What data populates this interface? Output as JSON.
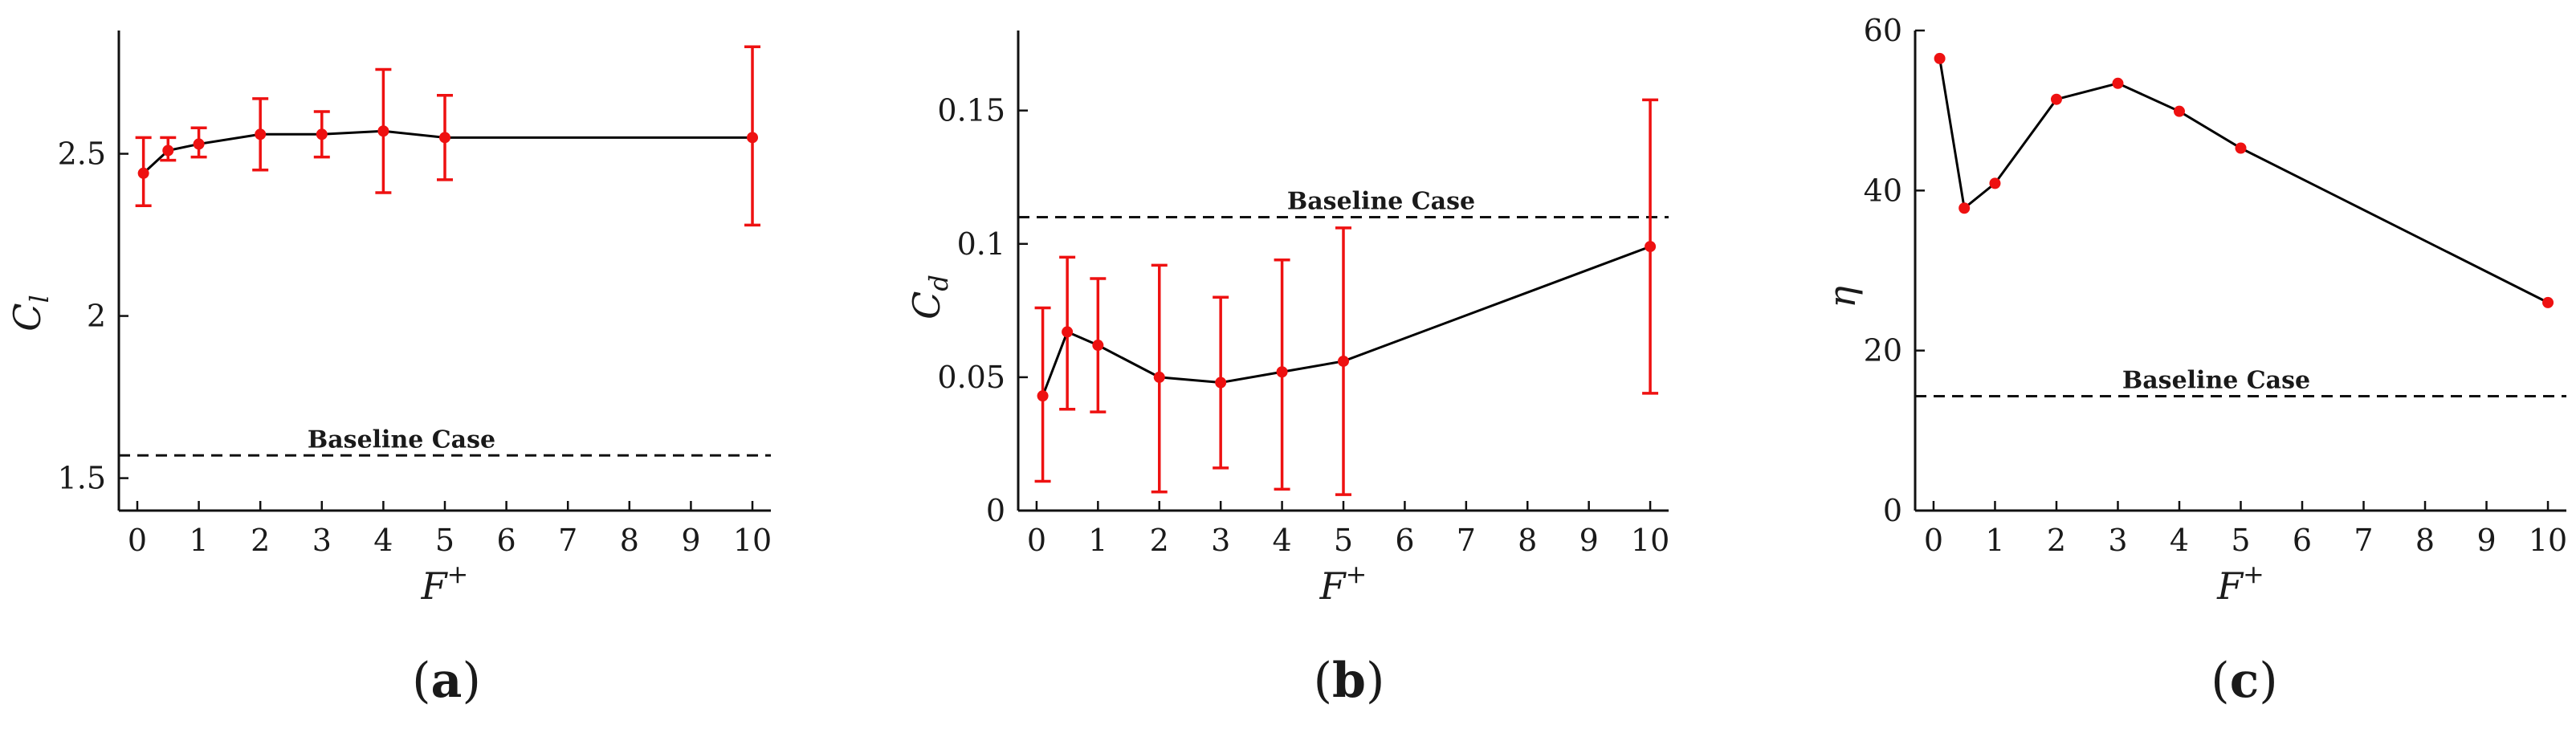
{
  "chart_data": [
    {
      "type": "line",
      "panel_label": "(a)",
      "panel_letter": "a",
      "xlabel": "F",
      "xlabel_sup": "+",
      "ylabel": "C",
      "ylabel_sub": "l",
      "xlim": [
        -0.3,
        10.3
      ],
      "ylim": [
        1.4,
        2.88
      ],
      "xticks": [
        0,
        1,
        2,
        3,
        4,
        5,
        6,
        7,
        8,
        9,
        10
      ],
      "yticks": [
        1.5,
        2,
        2.5
      ],
      "ytick_labels": [
        "1.5",
        "2",
        "2.5"
      ],
      "series": [
        {
          "x": [
            0.1,
            0.5,
            1,
            2,
            3,
            4,
            5,
            10
          ],
          "y": [
            2.44,
            2.51,
            2.53,
            2.56,
            2.56,
            2.57,
            2.55,
            2.55
          ],
          "err_low": [
            2.34,
            2.48,
            2.49,
            2.45,
            2.49,
            2.38,
            2.42,
            2.28
          ],
          "err_high": [
            2.55,
            2.55,
            2.58,
            2.67,
            2.63,
            2.76,
            2.68,
            2.83
          ]
        }
      ],
      "baseline": {
        "value": 1.57,
        "label": "Baseline Case"
      },
      "colors": {
        "line": "#000000",
        "markers": "#ee1111"
      }
    },
    {
      "type": "line",
      "panel_label": "(b)",
      "panel_letter": "b",
      "xlabel": "F",
      "xlabel_sup": "+",
      "ylabel": "C",
      "ylabel_sub": "d",
      "xlim": [
        -0.3,
        10.3
      ],
      "ylim": [
        0,
        0.18
      ],
      "xticks": [
        0,
        1,
        2,
        3,
        4,
        5,
        6,
        7,
        8,
        9,
        10
      ],
      "yticks": [
        0,
        0.05,
        0.1,
        0.15
      ],
      "ytick_labels": [
        "0",
        "0.05",
        "0.1",
        "0.15"
      ],
      "series": [
        {
          "x": [
            0.1,
            0.5,
            1,
            2,
            3,
            4,
            5,
            10
          ],
          "y": [
            0.043,
            0.067,
            0.062,
            0.05,
            0.048,
            0.052,
            0.056,
            0.099
          ],
          "err_low": [
            0.011,
            0.038,
            0.037,
            0.007,
            0.016,
            0.008,
            0.006,
            0.044
          ],
          "err_high": [
            0.076,
            0.095,
            0.087,
            0.092,
            0.08,
            0.094,
            0.106,
            0.154
          ]
        }
      ],
      "baseline": {
        "value": 0.11,
        "label": "Baseline Case"
      },
      "colors": {
        "line": "#000000",
        "markers": "#ee1111"
      }
    },
    {
      "type": "line",
      "panel_label": "(c)",
      "panel_letter": "c",
      "xlabel": "F",
      "xlabel_sup": "+",
      "ylabel": "η",
      "ylabel_sub": "",
      "xlim": [
        -0.3,
        10.3
      ],
      "ylim": [
        0,
        60
      ],
      "xticks": [
        0,
        1,
        2,
        3,
        4,
        5,
        6,
        7,
        8,
        9,
        10
      ],
      "yticks": [
        0,
        20,
        40,
        60
      ],
      "ytick_labels": [
        "0",
        "20",
        "40",
        "60"
      ],
      "series": [
        {
          "x": [
            0.1,
            0.5,
            1,
            2,
            3,
            4,
            5,
            10
          ],
          "y": [
            56.5,
            37.8,
            40.9,
            51.4,
            53.4,
            49.9,
            45.3,
            26.0
          ],
          "err_low": null,
          "err_high": null
        }
      ],
      "baseline": {
        "value": 14.3,
        "label": "Baseline Case"
      },
      "colors": {
        "line": "#000000",
        "markers": "#ee1111"
      }
    }
  ]
}
